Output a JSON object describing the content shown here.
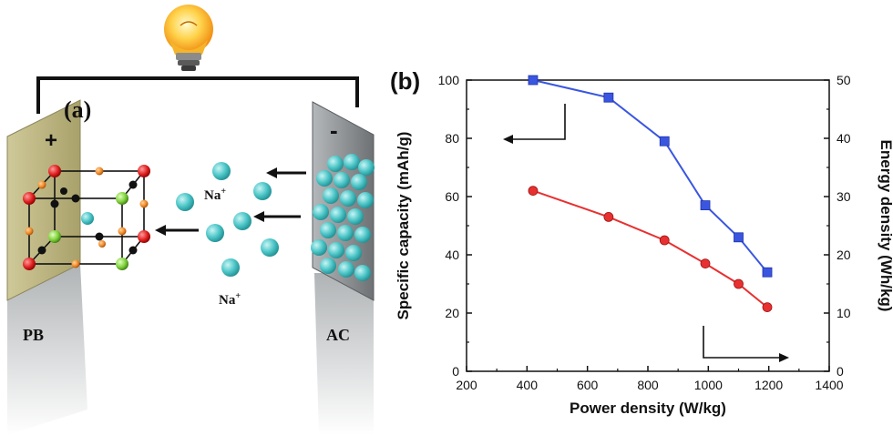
{
  "panel_a": {
    "label": "(a)",
    "positive_sign": "+",
    "negative_sign": "-",
    "ion_label_top": "Na",
    "ion_label_bottom": "Na",
    "ion_charge": "+",
    "left_electrode": "PB",
    "right_electrode": "AC",
    "colors": {
      "bulb": "#f5a623",
      "wire": "#111111",
      "pb_plate": "#b8b07a",
      "ac_plate": "#8f9396",
      "ion": "#4fc7c9",
      "red_atom": "#e02020",
      "green_atom": "#7fd13b",
      "orange_atom": "#f08a2a",
      "black_atom": "#111111"
    }
  },
  "panel_b": {
    "label": "(b)"
  },
  "chart_data": {
    "type": "line",
    "xlabel": "Power density (W/kg)",
    "ylabel_left": "Specific capacity (mAh/g)",
    "ylabel_right": "Energy density (Wh/kg)",
    "xlim": [
      200,
      1400
    ],
    "ylim_left": [
      0,
      100
    ],
    "ylim_right": [
      0,
      50
    ],
    "xticks": [
      "200",
      "400",
      "600",
      "800",
      "1000",
      "1200",
      "1400"
    ],
    "yticks_left": [
      "0",
      "20",
      "40",
      "60",
      "80",
      "100"
    ],
    "yticks_right": [
      "0",
      "10",
      "20",
      "30",
      "40",
      "50"
    ],
    "grid": false,
    "series": [
      {
        "axis": "left",
        "color": "#3a56e0",
        "marker": "square",
        "x": [
          420,
          670,
          855,
          990,
          1100,
          1195
        ],
        "y": [
          100,
          94,
          79,
          57,
          46,
          34
        ]
      },
      {
        "axis": "right",
        "color": "#e83030",
        "marker": "circle",
        "x": [
          420,
          670,
          855,
          990,
          1100,
          1195
        ],
        "y": [
          31,
          26.5,
          22.5,
          18.5,
          15,
          11
        ]
      }
    ]
  }
}
